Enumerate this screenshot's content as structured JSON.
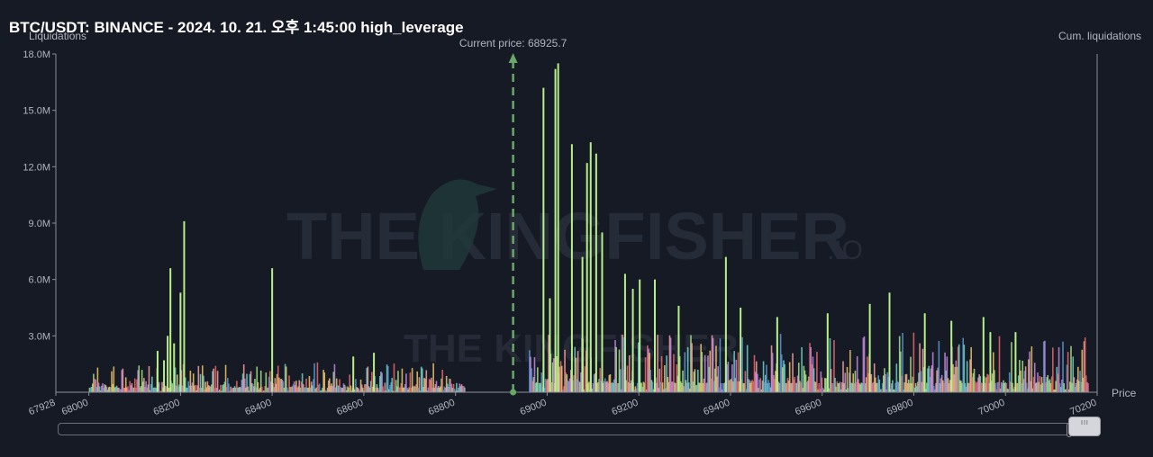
{
  "title": "BTC/USDT: BINANCE - 2024. 10. 21. 오후 1:45:00 high_leverage",
  "watermark": {
    "brand": "THE KINGFISHER",
    "suffix": ".IO"
  },
  "scrollbar": {
    "grip": "III"
  },
  "chart_data": {
    "type": "bar",
    "ylabel": "Liquidations",
    "y2label": "Cum. liquidations",
    "xlabel": "Price",
    "xlim": [
      67928,
      70200
    ],
    "ylim": [
      0,
      18000000
    ],
    "x_ticks": [
      "67928",
      "68000",
      "68200",
      "68400",
      "68600",
      "68800",
      "69000",
      "69200",
      "69400",
      "69600",
      "69800",
      "70000",
      "70200"
    ],
    "y_ticks": [
      "18.0M",
      "15.0M",
      "12.0M",
      "9.0M",
      "6.0M",
      "3.0M"
    ],
    "current_price": {
      "label": "Current price: 68925.7",
      "value": 68925.7
    },
    "colors": [
      "#e86b6b",
      "#f7a1a1",
      "#a8e38a",
      "#5b9bd5",
      "#f0c86a",
      "#6fd3c9",
      "#c48be0"
    ],
    "highlight_color": "#b7f08a",
    "series": [
      {
        "x": 68148,
        "value": 2200000
      },
      {
        "x": 68162,
        "value": 1700000
      },
      {
        "x": 68170,
        "value": 3000000
      },
      {
        "x": 68176,
        "value": 6600000
      },
      {
        "x": 68184,
        "value": 2600000
      },
      {
        "x": 68198,
        "value": 5300000
      },
      {
        "x": 68206,
        "value": 9100000
      },
      {
        "x": 68398,
        "value": 6600000
      },
      {
        "x": 68575,
        "value": 1900000
      },
      {
        "x": 68620,
        "value": 2100000
      },
      {
        "x": 68990,
        "value": 16200000
      },
      {
        "x": 69004,
        "value": 5000000
      },
      {
        "x": 69016,
        "value": 17200000
      },
      {
        "x": 69022,
        "value": 17500000
      },
      {
        "x": 69052,
        "value": 13200000
      },
      {
        "x": 69075,
        "value": 7200000
      },
      {
        "x": 69085,
        "value": 12200000
      },
      {
        "x": 69093,
        "value": 13300000
      },
      {
        "x": 69105,
        "value": 12700000
      },
      {
        "x": 69118,
        "value": 8500000
      },
      {
        "x": 69168,
        "value": 6300000
      },
      {
        "x": 69185,
        "value": 5500000
      },
      {
        "x": 69200,
        "value": 6000000
      },
      {
        "x": 69233,
        "value": 6000000
      },
      {
        "x": 69285,
        "value": 4600000
      },
      {
        "x": 69388,
        "value": 7200000
      },
      {
        "x": 69420,
        "value": 4500000
      },
      {
        "x": 69500,
        "value": 4000000
      },
      {
        "x": 69610,
        "value": 4200000
      },
      {
        "x": 69702,
        "value": 4700000
      },
      {
        "x": 69745,
        "value": 5300000
      },
      {
        "x": 69822,
        "value": 4200000
      },
      {
        "x": 69880,
        "value": 3800000
      },
      {
        "x": 69950,
        "value": 4000000
      },
      {
        "x": 69965,
        "value": 3200000
      },
      {
        "x": 70020,
        "value": 3200000
      }
    ]
  }
}
